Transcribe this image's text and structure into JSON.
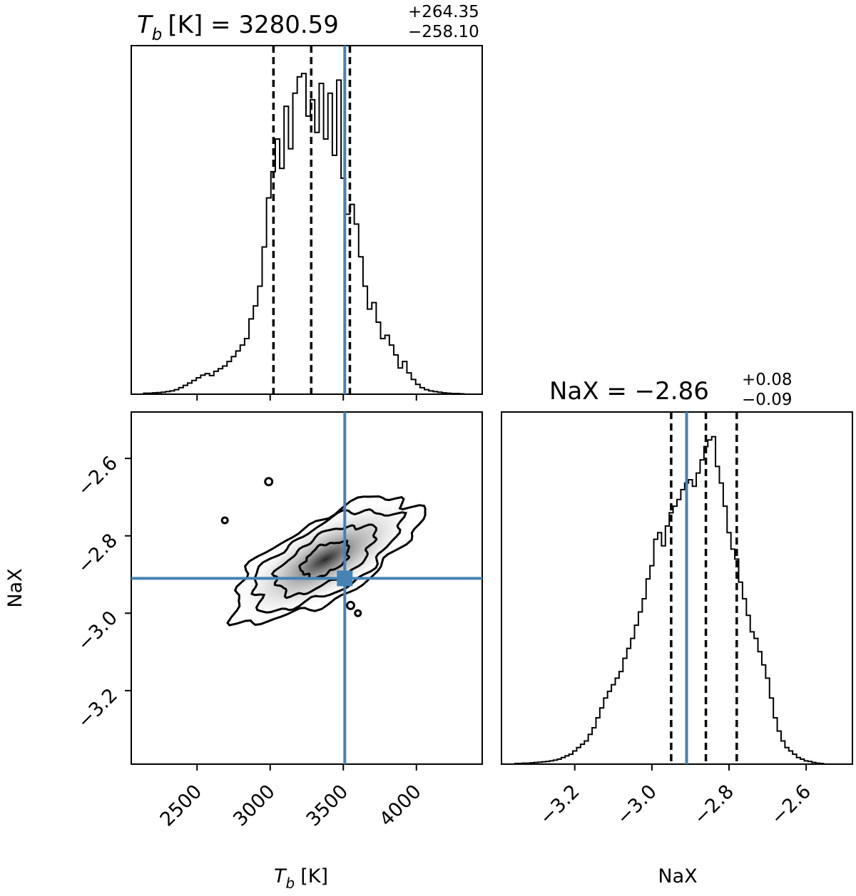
{
  "chart_data": [
    {
      "type": "histogram",
      "panel": "Tb-marginal",
      "title": {
        "main": "[K] = 3280.59",
        "var": "T",
        "sub": "b",
        "plus": "+264.35",
        "minus": "−258.10"
      },
      "xlim": [
        2050,
        4450
      ],
      "x_ticks": [
        2500,
        3000,
        3500,
        4000
      ],
      "quantiles": [
        3022.49,
        3280.59,
        3544.94
      ],
      "truth": 3510,
      "bins": [
        2150,
        2180,
        2210,
        2240,
        2270,
        2300,
        2330,
        2360,
        2390,
        2420,
        2450,
        2480,
        2510,
        2540,
        2570,
        2600,
        2630,
        2660,
        2690,
        2720,
        2750,
        2780,
        2810,
        2840,
        2870,
        2900,
        2930,
        2960,
        2990,
        3020,
        3050,
        3080,
        3110,
        3140,
        3170,
        3200,
        3230,
        3260,
        3290,
        3320,
        3350,
        3380,
        3410,
        3440,
        3470,
        3500,
        3530,
        3560,
        3590,
        3620,
        3650,
        3680,
        3710,
        3740,
        3770,
        3800,
        3830,
        3860,
        3890,
        3920,
        3950,
        3980,
        4010,
        4040,
        4070,
        4100,
        4130,
        4160,
        4190,
        4220,
        4250,
        4280,
        4310
      ],
      "counts": [
        0.3,
        0.3,
        0.4,
        0.5,
        0.6,
        0.8,
        1.0,
        1.4,
        2.0,
        2.7,
        3.4,
        4.2,
        5.0,
        5.8,
        6.3,
        5.7,
        7.0,
        7.8,
        8.6,
        10.0,
        11.5,
        13.2,
        15.0,
        17.0,
        23.0,
        27.0,
        33.0,
        45.0,
        60.0,
        68.0,
        78.0,
        69.0,
        88.0,
        75.0,
        92.0,
        97.0,
        98.0,
        85.0,
        90.0,
        80.0,
        95.0,
        78.0,
        92.0,
        73.0,
        96.0,
        66.0,
        55.0,
        58.0,
        52.0,
        42.0,
        33.0,
        26.0,
        28.0,
        22.0,
        17.0,
        18.0,
        15.0,
        12.0,
        8.0,
        10.0,
        6.5,
        4.5,
        3.0,
        2.0,
        1.4,
        1.0,
        0.8,
        0.6,
        0.4,
        0.3,
        0.2,
        0.2,
        0.1
      ],
      "ymax": 100
    },
    {
      "type": "contour",
      "panel": "Tb-NaX-joint",
      "xlim": [
        2050,
        4450
      ],
      "ylim": [
        -3.39,
        -2.48
      ],
      "x_ticks": [
        2500,
        3000,
        3500,
        4000
      ],
      "y_ticks": [
        -3.2,
        -3.0,
        -2.8,
        -2.6
      ],
      "xlabel": {
        "var": "T",
        "sub": "b",
        "rest": "[K]"
      },
      "ylabel": "NaX",
      "truth": [
        3510,
        -2.91
      ],
      "density_peak": [
        3280,
        -2.85
      ],
      "contour_levels": [
        {
          "rx": 720,
          "ry": 0.1,
          "angle_deg": -30
        },
        {
          "rx": 560,
          "ry": 0.085,
          "angle_deg": -30
        },
        {
          "rx": 380,
          "ry": 0.06,
          "angle_deg": -30
        },
        {
          "rx": 180,
          "ry": 0.035,
          "angle_deg": -30
        }
      ]
    },
    {
      "type": "histogram",
      "panel": "NaX-marginal",
      "title": {
        "main": "NaX = −2.86",
        "plus": "+0.08",
        "minus": "−0.09"
      },
      "xlim": [
        -3.39,
        -2.48
      ],
      "x_ticks": [
        -3.2,
        -3.0,
        -2.8,
        -2.6
      ],
      "xlabel": "NaX",
      "quantiles": [
        -2.95,
        -2.86,
        -2.78
      ],
      "truth": -2.91,
      "bins": [
        -3.35,
        -3.34,
        -3.33,
        -3.32,
        -3.31,
        -3.3,
        -3.29,
        -3.28,
        -3.27,
        -3.26,
        -3.25,
        -3.24,
        -3.23,
        -3.22,
        -3.21,
        -3.2,
        -3.19,
        -3.18,
        -3.17,
        -3.16,
        -3.15,
        -3.14,
        -3.13,
        -3.12,
        -3.11,
        -3.1,
        -3.09,
        -3.08,
        -3.07,
        -3.06,
        -3.05,
        -3.04,
        -3.03,
        -3.02,
        -3.01,
        -3.0,
        -2.99,
        -2.98,
        -2.97,
        -2.96,
        -2.95,
        -2.94,
        -2.93,
        -2.92,
        -2.91,
        -2.9,
        -2.89,
        -2.88,
        -2.87,
        -2.86,
        -2.85,
        -2.84,
        -2.83,
        -2.82,
        -2.81,
        -2.8,
        -2.79,
        -2.78,
        -2.77,
        -2.76,
        -2.75,
        -2.74,
        -2.73,
        -2.72,
        -2.71,
        -2.7,
        -2.69,
        -2.68,
        -2.67,
        -2.66,
        -2.65,
        -2.64,
        -2.63,
        -2.62,
        -2.61,
        -2.6,
        -2.59,
        -2.58,
        -2.57,
        -2.56
      ],
      "counts": [
        0.2,
        0.2,
        0.3,
        0.3,
        0.4,
        0.5,
        0.6,
        0.7,
        0.8,
        1.0,
        1.2,
        1.5,
        2.0,
        2.5,
        3.0,
        4.0,
        5.0,
        6.0,
        7.0,
        9.0,
        11.0,
        14.0,
        17.0,
        20.0,
        22.0,
        24.0,
        26.0,
        28.0,
        32.0,
        35.0,
        38.0,
        42.0,
        46.0,
        50.0,
        56.0,
        60.0,
        68.0,
        70.0,
        66.0,
        72.0,
        76.0,
        78.0,
        80.0,
        83.0,
        85.0,
        86.0,
        84.0,
        88.0,
        92.0,
        96.0,
        98.0,
        99.0,
        90.0,
        85.0,
        78.0,
        70.0,
        65.0,
        62.0,
        55.0,
        50.0,
        45.0,
        40.0,
        38.0,
        34.0,
        30.0,
        26.0,
        20.0,
        14.0,
        10.0,
        7.0,
        5.0,
        4.0,
        3.0,
        2.0,
        1.5,
        1.0,
        0.8,
        0.5,
        0.3,
        0.2
      ],
      "ymax": 100
    }
  ],
  "colors": {
    "truth": "#4682b4",
    "hist": "#000000",
    "quantile": "#000000"
  }
}
